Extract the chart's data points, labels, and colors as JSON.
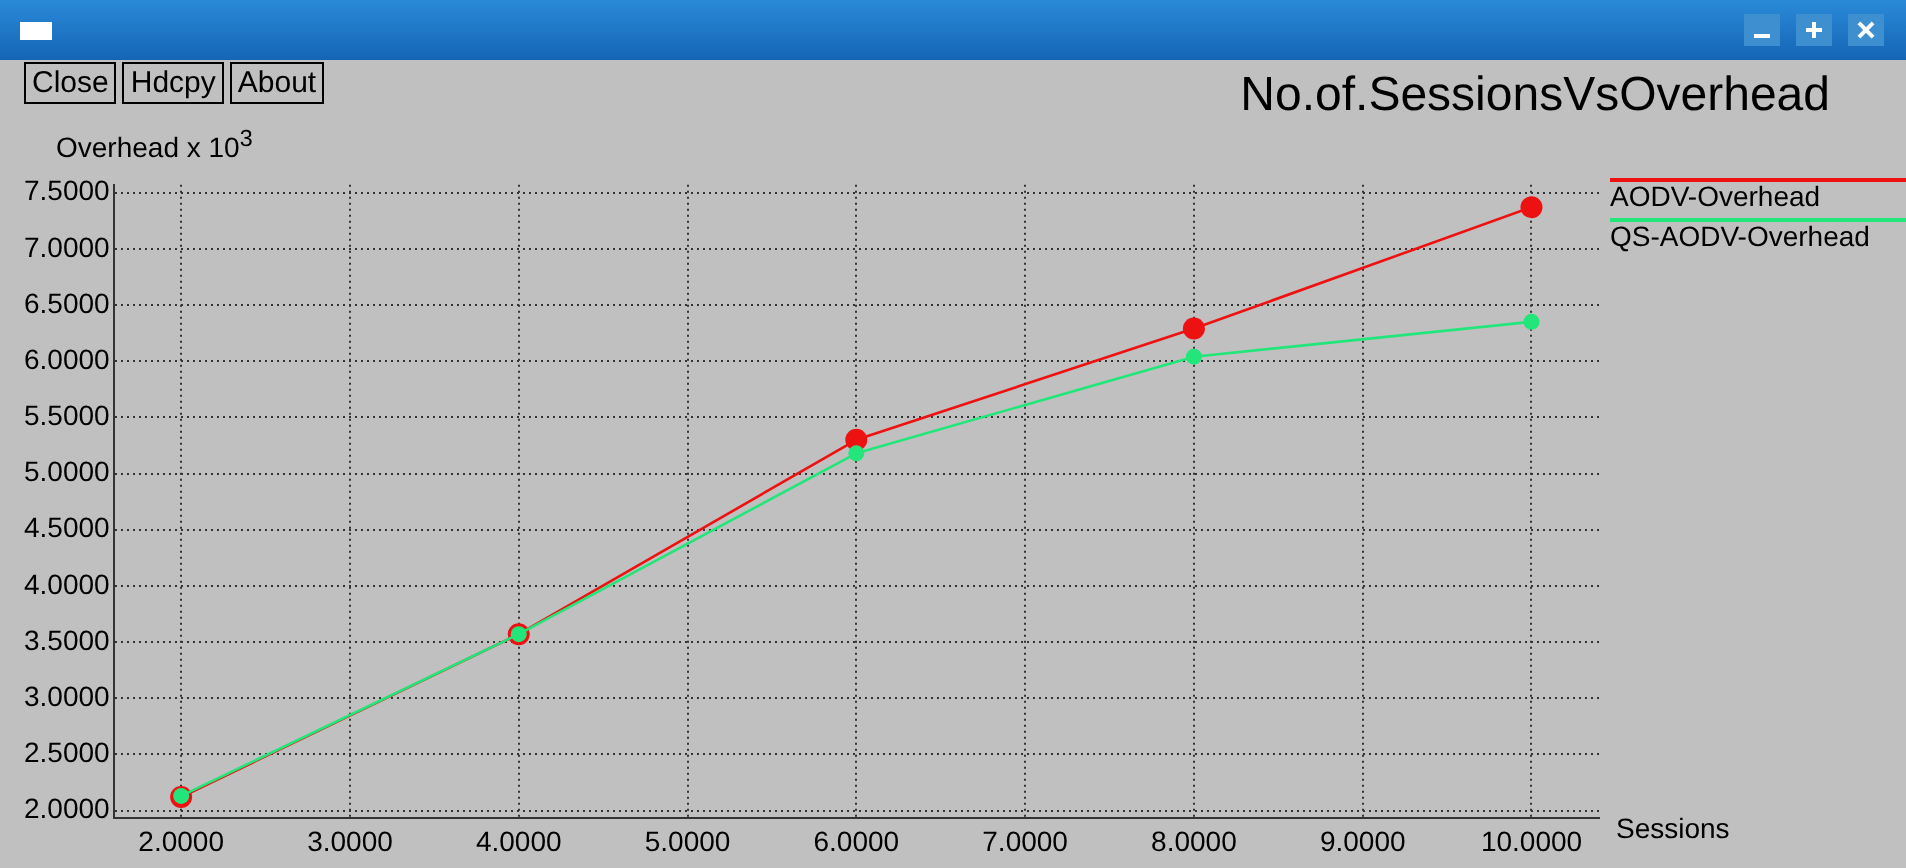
{
  "chart_data": {
    "type": "line",
    "title": "No.of.SessionsVsOverhead",
    "xlabel": "Sessions",
    "ylabel": "Overhead x 10$^{3}$",
    "annotations": [
      "Close",
      "Hdcpy",
      "About"
    ],
    "x": [
      2,
      4,
      6,
      8,
      10
    ],
    "series": [
      {
        "name": "AODV-Overhead",
        "color": "#ee1111",
        "values": [
          2.12,
          3.57,
          5.3,
          6.29,
          7.37
        ]
      },
      {
        "name": "QS-AODV-Overhead",
        "color": "#22e67a",
        "values": [
          2.13,
          3.57,
          5.18,
          6.04,
          6.35
        ]
      }
    ],
    "xlim": [
      1.6,
      10.4
    ],
    "ylim": [
      1.93,
      7.57
    ],
    "xticks": [
      {
        "value": 2,
        "label": "2.0000"
      },
      {
        "value": 3,
        "label": "3.0000"
      },
      {
        "value": 4,
        "label": "4.0000"
      },
      {
        "value": 5,
        "label": "5.0000"
      },
      {
        "value": 6,
        "label": "6.0000"
      },
      {
        "value": 7,
        "label": "7.0000"
      },
      {
        "value": 8,
        "label": "8.0000"
      },
      {
        "value": 9,
        "label": "9.0000"
      },
      {
        "value": 10,
        "label": "10.0000"
      }
    ],
    "yticks": [
      {
        "value": 2,
        "label": "2.0000"
      },
      {
        "value": 2.5,
        "label": "2.5000"
      },
      {
        "value": 3,
        "label": "3.0000"
      },
      {
        "value": 3.5,
        "label": "3.5000"
      },
      {
        "value": 4,
        "label": "4.0000"
      },
      {
        "value": 4.5,
        "label": "4.5000"
      },
      {
        "value": 5,
        "label": "5.0000"
      },
      {
        "value": 5.5,
        "label": "5.5000"
      },
      {
        "value": 6,
        "label": "6.0000"
      },
      {
        "value": 6.5,
        "label": "6.5000"
      },
      {
        "value": 7,
        "label": "7.0000"
      },
      {
        "value": 7.5,
        "label": "7.5000"
      }
    ],
    "grid": true,
    "legend": "top right",
    "marker": "circle",
    "line_style": "solid"
  }
}
